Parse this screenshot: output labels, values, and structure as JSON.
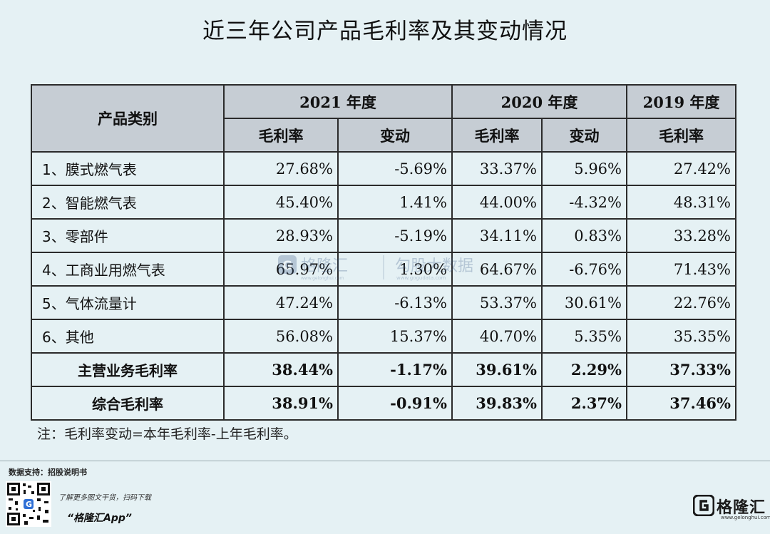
{
  "title": "近三年公司产品毛利率及其变动情况",
  "table": {
    "category_header": "产品类别",
    "years": [
      "2021 年度",
      "2020 年度",
      "2019 年度"
    ],
    "sub_headers": [
      "毛利率",
      "变动",
      "毛利率",
      "变动",
      "毛利率"
    ],
    "rows": [
      {
        "label": "1、膜式燃气表",
        "values": [
          "27.68%",
          "-5.69%",
          "33.37%",
          "5.96%",
          "27.42%"
        ]
      },
      {
        "label": "2、智能燃气表",
        "values": [
          "45.40%",
          "1.41%",
          "44.00%",
          "-4.32%",
          "48.31%"
        ]
      },
      {
        "label": "3、零部件",
        "values": [
          "28.93%",
          "-5.19%",
          "34.11%",
          "0.83%",
          "33.28%"
        ]
      },
      {
        "label": "4、工商业用燃气表",
        "values": [
          "65.97%",
          "1.30%",
          "64.67%",
          "-6.76%",
          "71.43%"
        ]
      },
      {
        "label": "5、气体流量计",
        "values": [
          "47.24%",
          "-6.13%",
          "53.37%",
          "30.61%",
          "22.76%"
        ]
      },
      {
        "label": "6、其他",
        "values": [
          "56.08%",
          "15.37%",
          "40.70%",
          "5.35%",
          "35.35%"
        ]
      }
    ],
    "summary_rows": [
      {
        "label": "主营业务毛利率",
        "values": [
          "38.44%",
          "-1.17%",
          "39.61%",
          "2.29%",
          "37.33%"
        ]
      },
      {
        "label": "综合毛利率",
        "values": [
          "38.91%",
          "-0.91%",
          "39.83%",
          "2.37%",
          "37.46%"
        ]
      }
    ]
  },
  "note": "注：毛利率变动=本年毛利率-上年毛利率。",
  "footer": {
    "source": "数据支持：招股说明书",
    "promo_line1": "了解更多图文干货，扫码下载",
    "promo_line2": "“格隆汇App”",
    "brand_name": "格隆汇",
    "brand_url": "www.gelonghui.com",
    "qr_icon": "qr-code-icon",
    "logo_icon": "gelonghui-logo-icon"
  },
  "watermark": {
    "brand": "格隆汇",
    "brand_url": "www.gelonghui.com",
    "product": "勾股大数据",
    "product_url": "www.gogudata.com"
  },
  "colors": {
    "background": "#e5f1f4",
    "header_fill": "#c6cdd4",
    "border": "#2b2b2b"
  }
}
